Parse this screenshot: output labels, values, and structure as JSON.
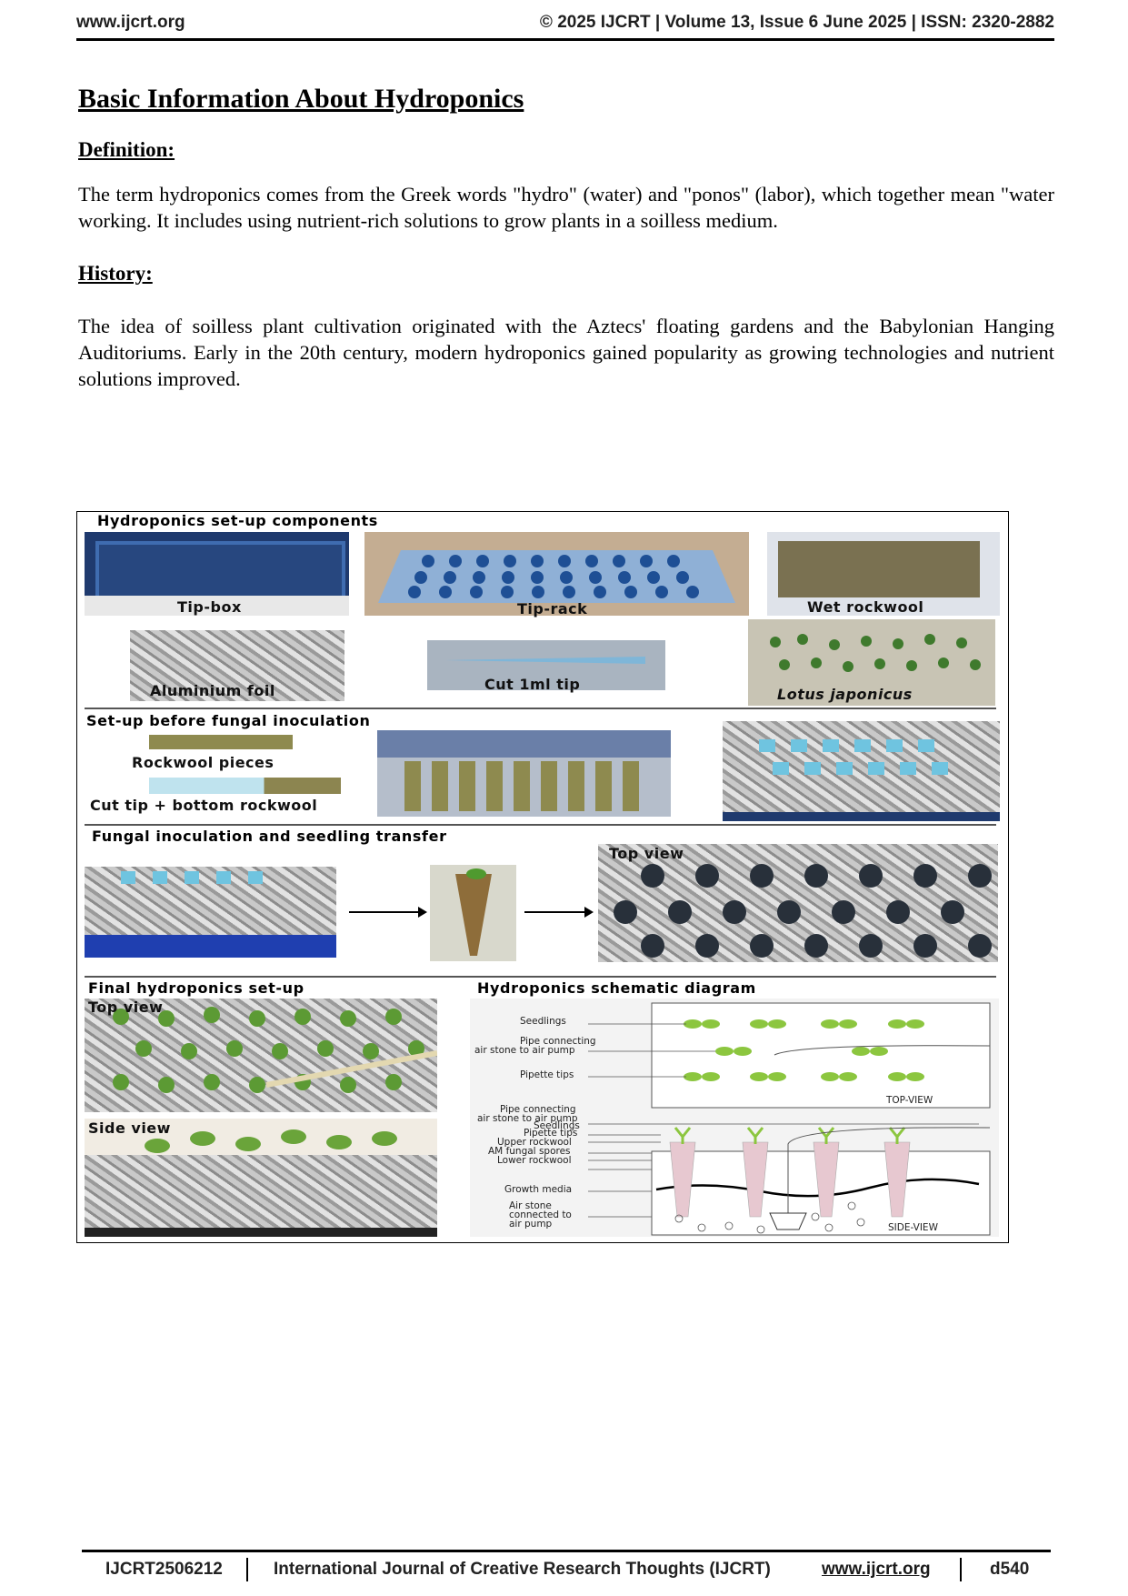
{
  "header": {
    "site": "www.ijcrt.org",
    "citation": "© 2025 IJCRT | Volume 13, Issue 6 June 2025 | ISSN: 2320-2882"
  },
  "title": "Basic Information About Hydroponics",
  "definition": {
    "heading": "Definition:",
    "text": "The term hydroponics comes from the Greek words \"hydro\" (water) and \"ponos\" (labor), which together mean \"water working. It includes using nutrient-rich solutions to grow plants in a soilless medium."
  },
  "history": {
    "heading": "History:",
    "text": "The idea of soilless plant cultivation originated with the Aztecs' floating gardens and the Babylonian Hanging Auditoriums. Early in the 20th century, modern hydroponics gained popularity as growing technologies and nutrient solutions improved."
  },
  "figure": {
    "section1": "Hydroponics set-up components",
    "tip_box": "Tip-box",
    "tip_rack": "Tip-rack",
    "wet_rockwool": "Wet rockwool",
    "aluminium_foil": "Aluminium foil",
    "cut_tip": "Cut 1ml tip",
    "lotus": "Lotus japonicus",
    "section2": "Set-up before fungal inoculation",
    "rockwool_pieces": "Rockwool pieces",
    "cut_tip_bottom": "Cut tip + bottom rockwool",
    "section3": "Fungal inoculation and seedling transfer",
    "top_view": "Top view",
    "section4": "Final hydroponics set-up",
    "top_view2": "Top view",
    "side_view": "Side view",
    "section5": "Hydroponics schematic diagram",
    "schematic": {
      "seedlings": "Seedlings",
      "pipe1": "Pipe connecting",
      "pipe2": "air stone to air pump",
      "pipette_tips": "Pipette tips",
      "top_view": "TOP-VIEW",
      "pipe3": "Pipe connecting",
      "pipe4": "air stone to air pump",
      "seedlings2": "Seedlings",
      "pipette_tips2": "Pipette tips",
      "upper_rockwool": "Upper rockwool",
      "am_spores": "AM fungal spores",
      "lower_rockwool": "Lower rockwool",
      "growth_media": "Growth media",
      "air_stone1": "Air stone",
      "air_stone2": "connected to",
      "air_stone3": "air pump",
      "side_view": "SIDE-VIEW"
    }
  },
  "footer": {
    "paper_id": "IJCRT2506212",
    "journal": "International Journal of Creative Research Thoughts (IJCRT) ",
    "link": "www.ijcrt.org",
    "page": "d540"
  }
}
